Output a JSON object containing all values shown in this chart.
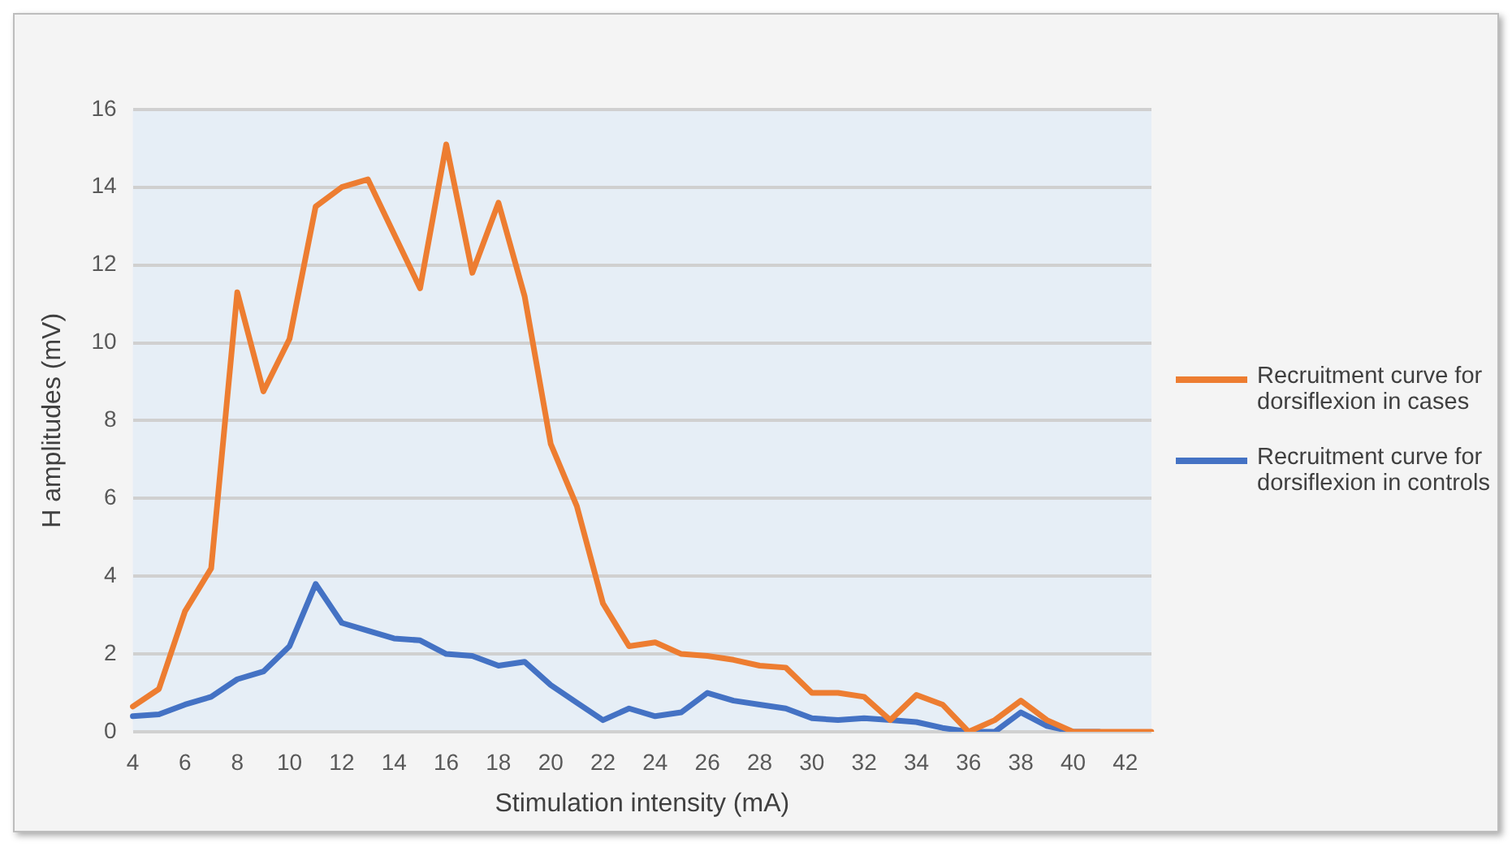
{
  "chart_data": {
    "type": "line",
    "xlabel": "Stimulation intensity (mA)",
    "ylabel": "H amplitudes (mV)",
    "categories": [
      "4",
      null,
      "6",
      null,
      "8",
      null,
      "10",
      null,
      "12",
      null,
      "14",
      null,
      "16",
      null,
      "18",
      null,
      "20",
      null,
      "22",
      null,
      "24",
      null,
      "26",
      null,
      "28",
      null,
      "30",
      null,
      "32",
      null,
      "34",
      null,
      "36",
      null,
      "38",
      null,
      "40",
      null,
      "42",
      null
    ],
    "series": [
      {
        "name": "Recruitment curve for dorsiflexion in cases",
        "color": "#ed7d31",
        "values": [
          0.65,
          1.1,
          3.1,
          4.2,
          11.3,
          8.75,
          10.1,
          13.5,
          14.0,
          14.2,
          12.8,
          11.4,
          15.1,
          11.8,
          13.6,
          11.2,
          7.4,
          5.8,
          3.3,
          2.2,
          2.3,
          2.0,
          1.95,
          1.85,
          1.7,
          1.65,
          1.0,
          1.0,
          0.9,
          0.3,
          0.95,
          0.7,
          0,
          0.3,
          0.8,
          0.3,
          0,
          0,
          0,
          0
        ]
      },
      {
        "name": "Recruitment curve for dorsiflexion in controls",
        "color": "#4472c4",
        "values": [
          0.4,
          0.45,
          0.7,
          0.9,
          1.35,
          1.55,
          2.2,
          3.8,
          2.8,
          2.6,
          2.4,
          2.35,
          2.0,
          1.95,
          1.7,
          1.8,
          1.2,
          0.75,
          0.3,
          0.6,
          0.4,
          0.5,
          1.0,
          0.8,
          0.7,
          0.6,
          0.35,
          0.3,
          0.35,
          0.3,
          0.25,
          0.1,
          0,
          0,
          0.5,
          0.15,
          0,
          0,
          null,
          null
        ]
      }
    ],
    "ylim": [
      0,
      16
    ],
    "yticks": [
      0,
      2,
      4,
      6,
      8,
      10,
      12,
      14,
      16
    ],
    "grid": "y",
    "legend": "right",
    "marker": "none",
    "line_style": "solid"
  }
}
